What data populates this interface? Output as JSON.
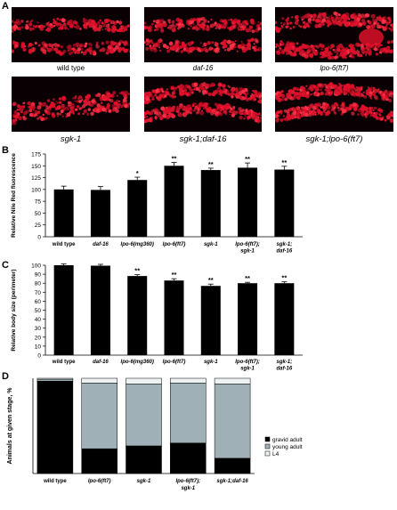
{
  "panels": {
    "a": {
      "letter": "A",
      "images": [
        {
          "label": "wild type",
          "italic": false
        },
        {
          "label": "daf-16",
          "italic": true
        },
        {
          "label": "lpo-6(ft7)",
          "italic": true
        },
        {
          "label": "sgk-1",
          "italic": true
        },
        {
          "label": "sgk-1;daf-16",
          "italic": true
        },
        {
          "label": "sgk-1;lpo-6(ft7)",
          "italic": true
        }
      ]
    },
    "b": {
      "letter": "B"
    },
    "c": {
      "letter": "C"
    },
    "d": {
      "letter": "D"
    }
  },
  "chart_data": [
    {
      "type": "bar",
      "panel": "B",
      "ylabel": "Relative Nile Red fluorescence",
      "ylim": [
        0,
        175
      ],
      "yticks": [
        0,
        25,
        50,
        75,
        100,
        125,
        150,
        175
      ],
      "categories": [
        "wild type",
        "daf-16",
        "lpo-6(mg360)",
        "lpo-6(ft7)",
        "sgk-1",
        "lpo-6(ft7);\nsgk-1",
        "sgk-1;\ndaf-16"
      ],
      "values": [
        100,
        99,
        120,
        150,
        141,
        146,
        142
      ],
      "errors": [
        7,
        7,
        6,
        7,
        4,
        10,
        7
      ],
      "significance": [
        "",
        "",
        "*",
        "**",
        "**",
        "**",
        "**"
      ],
      "bar_color": "#000000"
    },
    {
      "type": "bar",
      "panel": "C",
      "ylabel": "Relative body size (perimeter)",
      "ylim": [
        0,
        100
      ],
      "yticks": [
        0,
        10,
        20,
        30,
        40,
        50,
        60,
        70,
        80,
        90,
        100
      ],
      "categories": [
        "wild type",
        "daf-16",
        "lpo-6(mg360)",
        "lpo-6(ft7)",
        "sgk-1",
        "lpo-6(ft7);\nsgk-1",
        "sgk-1;\ndaf-16"
      ],
      "values": [
        100,
        99.5,
        88,
        83,
        77,
        80,
        80
      ],
      "errors": [
        1.5,
        1.5,
        1.5,
        2,
        2,
        1,
        1.5
      ],
      "significance": [
        "",
        "",
        "**",
        "**",
        "**",
        "**",
        "**"
      ],
      "bar_color": "#000000"
    },
    {
      "type": "bar",
      "stacked": true,
      "panel": "D",
      "ylabel": "Animals at given stage, %",
      "ylim": [
        0,
        100
      ],
      "categories": [
        "wild type",
        "lpo-6(ft7)",
        "sgk-1",
        "lpo-6(ft7);\nsgk-1",
        "sgk-1;daf-16"
      ],
      "series": [
        {
          "name": "gravid adult",
          "values": [
            97,
            26,
            29,
            32,
            16
          ],
          "color": "#000000"
        },
        {
          "name": "young adult",
          "values": [
            2,
            69,
            65,
            63,
            78
          ],
          "color": "#9fb1b7"
        },
        {
          "name": "L4",
          "values": [
            1,
            5,
            6,
            5,
            6
          ],
          "color": "#eef2f3"
        }
      ],
      "legend_position": "right"
    }
  ]
}
